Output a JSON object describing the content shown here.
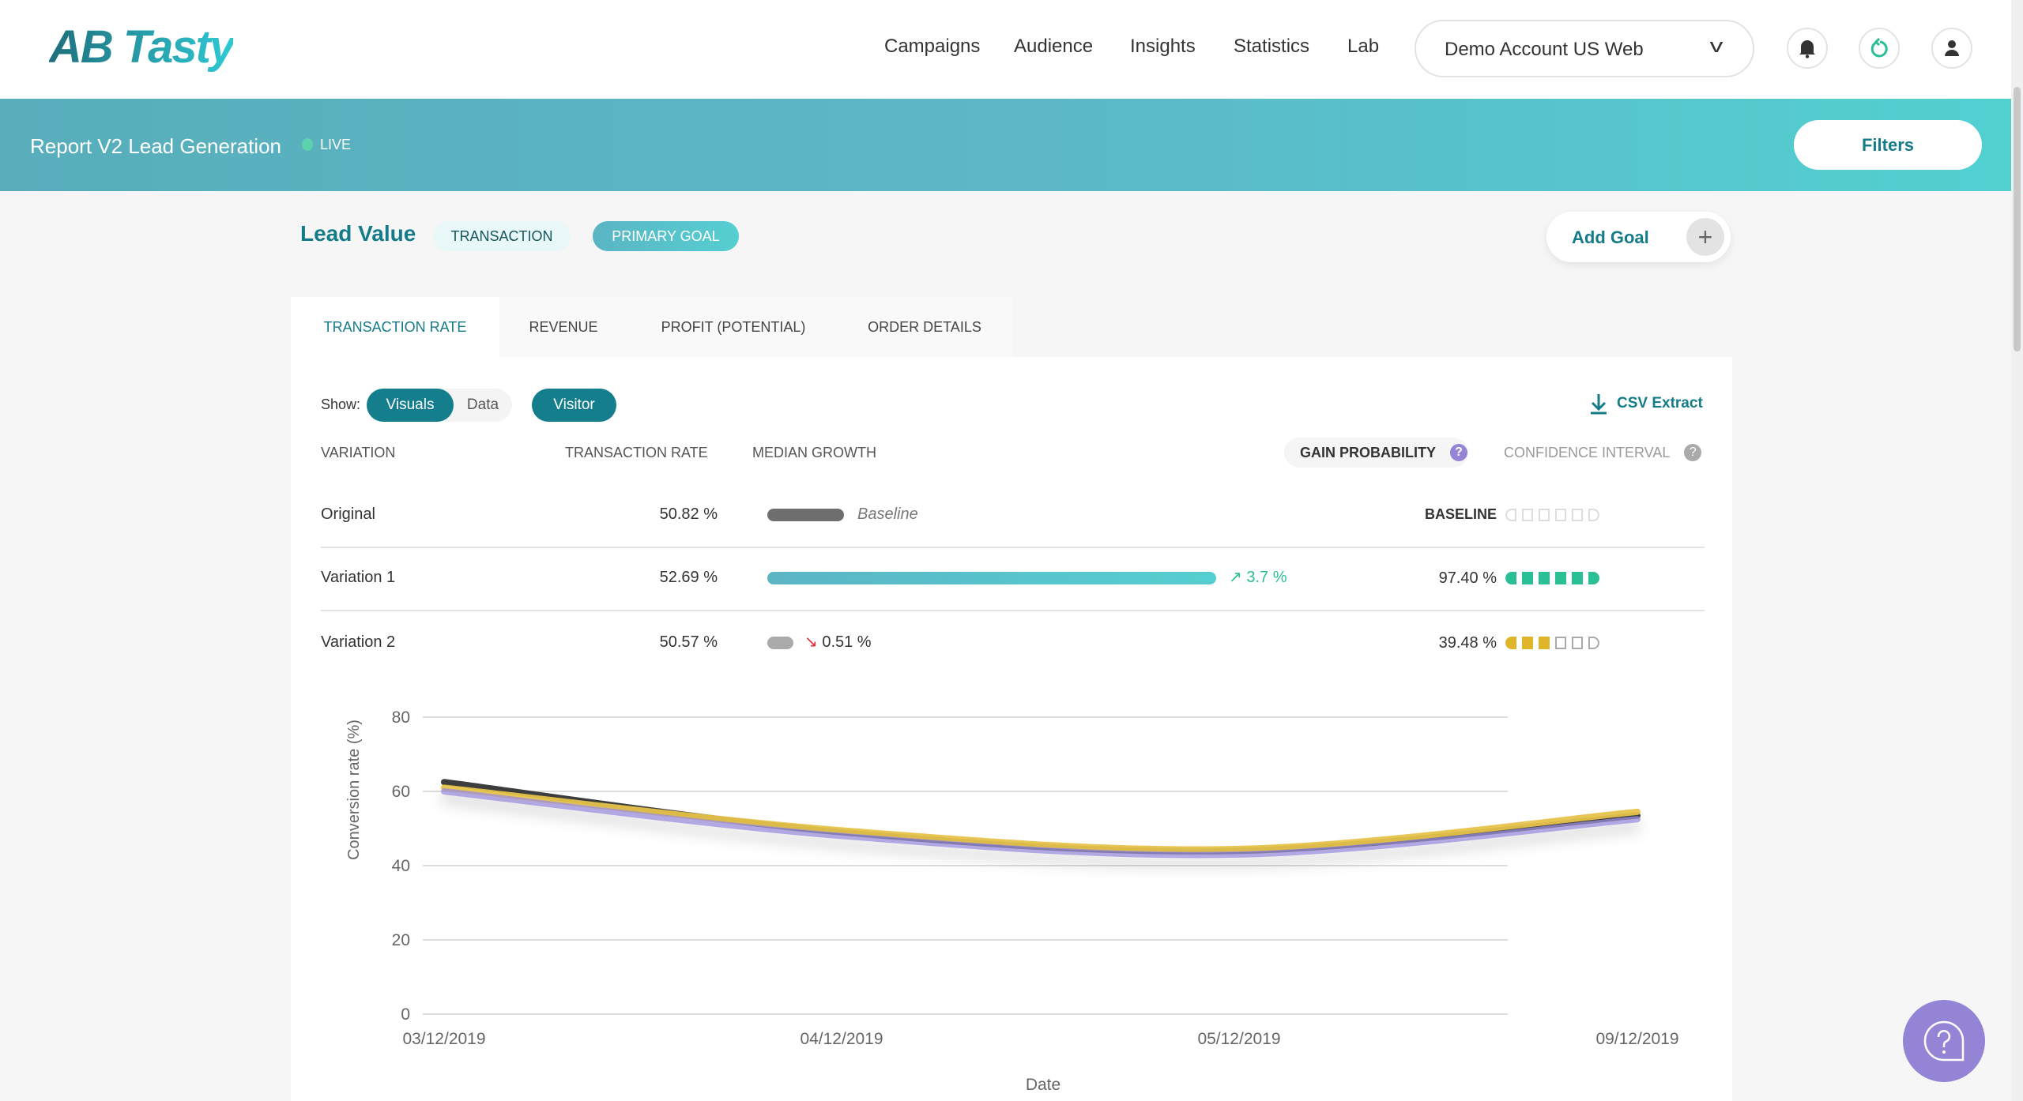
{
  "header": {
    "logo": "AB Tasty",
    "nav": [
      "Campaigns",
      "Audience",
      "Insights",
      "Statistics",
      "Lab"
    ],
    "account": "Demo Account US Web"
  },
  "banner": {
    "title": "Report V2 Lead Generation",
    "status": "LIVE",
    "filters": "Filters"
  },
  "goal": {
    "name": "Lead Value",
    "type": "TRANSACTION",
    "badge": "PRIMARY GOAL",
    "add_goal": "Add Goal"
  },
  "tabs": [
    "TRANSACTION RATE",
    "REVENUE",
    "PROFIT (POTENTIAL)",
    "ORDER DETAILS"
  ],
  "controls": {
    "show": "Show:",
    "visuals": "Visuals",
    "data": "Data",
    "visitor": "Visitor",
    "csv": "CSV Extract"
  },
  "columns": {
    "variation": "VARIATION",
    "rate": "TRANSACTION RATE",
    "growth": "MEDIAN GROWTH",
    "gain": "GAIN PROBABILITY",
    "ci": "CONFIDENCE INTERVAL"
  },
  "rows": [
    {
      "name": "Original",
      "rate": "50.82 %",
      "growth": "Baseline",
      "gain": "BASELINE",
      "gain_level": 0,
      "color": "#6e6e6e"
    },
    {
      "name": "Variation 1",
      "rate": "52.69 %",
      "growth": "3.7 %",
      "gain": "97.40 %",
      "gain_level": 6,
      "color": "#2bbf96"
    },
    {
      "name": "Variation 2",
      "rate": "50.57 %",
      "growth": "0.51 %",
      "gain": "39.48 %",
      "gain_level": 3,
      "color": "#e0b52a"
    }
  ],
  "chart_data": {
    "type": "line",
    "xlabel": "Date",
    "ylabel": "Conversion rate (%)",
    "ylim": [
      0,
      80
    ],
    "yticks": [
      "0",
      "20",
      "40",
      "60",
      "80"
    ],
    "categories": [
      "03/12/2019",
      "04/12/2019",
      "05/12/2019",
      "09/12/2019"
    ],
    "series": [
      {
        "color": "#333333",
        "values": [
          62.5,
          49,
          44,
          53.5
        ]
      },
      {
        "color": "#e6c34c",
        "values": [
          61,
          49.5,
          44.5,
          54.5
        ]
      },
      {
        "color": "#9b8ddb",
        "values": [
          60,
          48,
          43,
          52.5
        ]
      }
    ]
  }
}
